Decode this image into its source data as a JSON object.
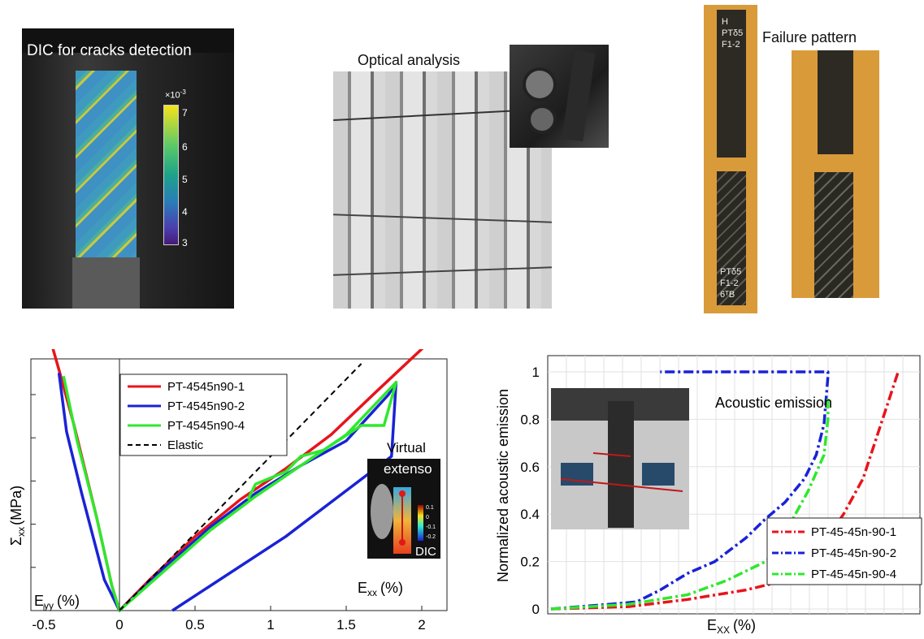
{
  "panels": {
    "dic": {
      "title": "DIC for cracks detection",
      "colorbar_exponent": "×10",
      "colorbar_exponent_power": "-3",
      "colorbar_ticks": [
        "7",
        "6",
        "5",
        "4",
        "3"
      ],
      "colorbar_colors": [
        "#f5e31c",
        "#57c76a",
        "#1ea28a",
        "#2a7bb8",
        "#4b3fae",
        "#461a77"
      ]
    },
    "optical": {
      "title": "Optical analysis"
    },
    "failure": {
      "title": "Failure pattern",
      "marks_top": [
        "H",
        "PTδ5",
        "F1-2"
      ],
      "marks_bottom": [
        "PTδ5",
        "F1-2",
        "6ᵀB"
      ]
    }
  },
  "chart_left": {
    "y_label_base": "Σ",
    "y_label_sub": "xx",
    "y_label_unit": "(MPa)",
    "exx_base": "E",
    "exx_sub": "xx",
    "exx_unit": "(%)",
    "eyy_base": "E",
    "eyy_sub": "yy",
    "eyy_unit": "(%)",
    "inset_title_1": "Virtual",
    "inset_title_2": "extenso",
    "inset_label": "DIC",
    "inset_ticks": [
      "0.1",
      "0",
      "-0.1",
      "-0.2"
    ]
  },
  "chart_right": {
    "xlabel_base": "E",
    "xlabel_sub": "XX",
    "xlabel_unit": "(%)",
    "ylabel": "Normalized acoustic emission",
    "inset_title": "Acoustic emission"
  },
  "chart_data": [
    {
      "type": "line",
      "xlabel": "E xx (%)",
      "ylabel": "Σ xx (MPa)",
      "xlim": [
        -0.55,
        2.2
      ],
      "x_ticks": [
        "-0.5",
        "0",
        "0.5",
        "1",
        "1.5",
        "2"
      ],
      "x_tick_values": [
        -0.5,
        0,
        0.5,
        1,
        1.5,
        2
      ],
      "legend_position": "top-left",
      "series": [
        {
          "name": "PT-4545n90-1",
          "color": "#e8141b",
          "style": "solid",
          "points": [
            [
              -0.47,
              0.9
            ],
            [
              -0.4,
              0.78
            ],
            [
              -0.3,
              0.6
            ],
            [
              -0.15,
              0.3
            ],
            [
              -0.05,
              0.08
            ],
            [
              0,
              0
            ],
            [
              0.2,
              0.1
            ],
            [
              0.5,
              0.24
            ],
            [
              0.8,
              0.36
            ],
            [
              1.1,
              0.46
            ],
            [
              1.4,
              0.57
            ],
            [
              1.7,
              0.71
            ],
            [
              2.07,
              0.88
            ]
          ]
        },
        {
          "name": "PT-4545n90-2",
          "color": "#1a22d6",
          "style": "solid",
          "points": [
            [
              -0.4,
              0.77
            ],
            [
              -0.35,
              0.58
            ],
            [
              -0.25,
              0.38
            ],
            [
              -0.1,
              0.1
            ],
            [
              0,
              0
            ],
            [
              0.3,
              0.14
            ],
            [
              0.6,
              0.27
            ],
            [
              0.9,
              0.38
            ],
            [
              1.2,
              0.47
            ],
            [
              1.5,
              0.55
            ],
            [
              1.78,
              0.7
            ],
            [
              1.83,
              0.74
            ],
            [
              1.8,
              0.5
            ],
            [
              1.1,
              0.24
            ],
            [
              0.35,
              0
            ]
          ]
        },
        {
          "name": "PT-4545n90-4",
          "color": "#2ee82e",
          "style": "solid",
          "points": [
            [
              -0.37,
              0.76
            ],
            [
              -0.28,
              0.55
            ],
            [
              -0.15,
              0.3
            ],
            [
              -0.05,
              0.08
            ],
            [
              0,
              0
            ],
            [
              0.3,
              0.13
            ],
            [
              0.6,
              0.26
            ],
            [
              0.9,
              0.37
            ],
            [
              1.2,
              0.47
            ],
            [
              1.5,
              0.57
            ],
            [
              1.83,
              0.74
            ],
            [
              1.75,
              0.6
            ],
            [
              1.6,
              0.6
            ],
            [
              1.35,
              0.52
            ],
            [
              1.2,
              0.5
            ],
            [
              1.1,
              0.45
            ],
            [
              0.9,
              0.41
            ],
            [
              0.85,
              0.36
            ]
          ]
        },
        {
          "name": "Elastic",
          "color": "#000000",
          "style": "dashed",
          "points": [
            [
              0,
              0
            ],
            [
              1.6,
              0.8
            ]
          ]
        }
      ]
    },
    {
      "type": "line",
      "xlabel": "E XX (%)",
      "ylabel": "Normalized acoustic emission",
      "ylim": [
        0,
        1
      ],
      "y_ticks": [
        "0",
        "0.2",
        "0.4",
        "0.6",
        "0.8",
        "1"
      ],
      "legend_position": "bottom-right",
      "series": [
        {
          "name": "PT-45-45n-90-1",
          "color": "#e8141b",
          "style": "dash-dot",
          "points": [
            [
              0,
              0
            ],
            [
              0.2,
              0.01
            ],
            [
              0.35,
              0.04
            ],
            [
              0.5,
              0.08
            ],
            [
              0.6,
              0.12
            ],
            [
              0.65,
              0.2
            ],
            [
              0.7,
              0.28
            ],
            [
              0.75,
              0.4
            ],
            [
              0.8,
              0.55
            ],
            [
              0.83,
              0.7
            ],
            [
              0.86,
              0.85
            ],
            [
              0.89,
              1.0
            ]
          ]
        },
        {
          "name": "PT-45-45n-90-2",
          "color": "#1a22d6",
          "style": "dash-dot",
          "points": [
            [
              0,
              0
            ],
            [
              0.15,
              0.02
            ],
            [
              0.22,
              0.03
            ],
            [
              0.28,
              0.08
            ],
            [
              0.35,
              0.15
            ],
            [
              0.42,
              0.2
            ],
            [
              0.5,
              0.3
            ],
            [
              0.55,
              0.38
            ],
            [
              0.6,
              0.45
            ],
            [
              0.65,
              0.55
            ],
            [
              0.68,
              0.65
            ],
            [
              0.7,
              0.78
            ],
            [
              0.71,
              0.98
            ],
            [
              0.71,
              1.0
            ],
            [
              0.28,
              1.0
            ]
          ]
        },
        {
          "name": "PT-45-45n-90-4",
          "color": "#2ee82e",
          "style": "dash-dot",
          "points": [
            [
              0,
              0
            ],
            [
              0.2,
              0.02
            ],
            [
              0.35,
              0.06
            ],
            [
              0.45,
              0.12
            ],
            [
              0.55,
              0.2
            ],
            [
              0.6,
              0.28
            ],
            [
              0.62,
              0.38
            ],
            [
              0.66,
              0.5
            ],
            [
              0.7,
              0.65
            ],
            [
              0.71,
              0.8
            ],
            [
              0.71,
              0.9
            ]
          ]
        }
      ]
    }
  ]
}
